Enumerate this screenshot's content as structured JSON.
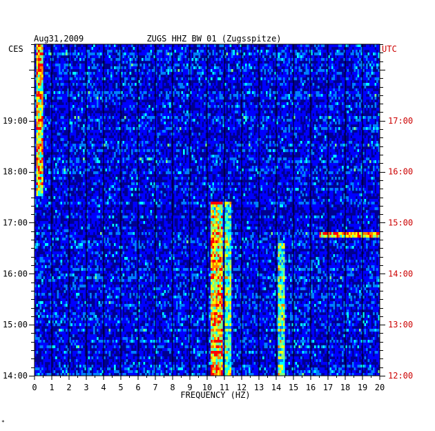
{
  "chart_data": {
    "type": "heatmap",
    "title": "ZUGS HHZ BW 01 (Zugsspitze)",
    "date": "Aug31,2009",
    "left_timezone": "CES",
    "right_timezone": "UTC",
    "xlabel": "FREQUENCY (HZ)",
    "xlim": [
      0,
      20
    ],
    "x_ticks": [
      "0",
      "1",
      "2",
      "3",
      "4",
      "5",
      "6",
      "7",
      "8",
      "9",
      "10",
      "11",
      "12",
      "13",
      "14",
      "15",
      "16",
      "17",
      "18",
      "19",
      "20"
    ],
    "left_time_range_hours": [
      14.0,
      20.5
    ],
    "left_time_ticks": [
      {
        "label": "19:00",
        "hour": 19
      },
      {
        "label": "18:00",
        "hour": 18
      },
      {
        "label": "17:00",
        "hour": 17
      },
      {
        "label": "16:00",
        "hour": 16
      },
      {
        "label": "15:00",
        "hour": 15
      },
      {
        "label": "14:00",
        "hour": 14
      }
    ],
    "right_time_ticks": [
      {
        "label": "17:00",
        "hour": 19
      },
      {
        "label": "16:00",
        "hour": 18
      },
      {
        "label": "15:00",
        "hour": 17
      },
      {
        "label": "14:00",
        "hour": 16
      },
      {
        "label": "13:00",
        "hour": 15
      },
      {
        "label": "12:00",
        "hour": 14
      }
    ],
    "features": [
      {
        "name": "low-frequency microseism band",
        "freq_range_hz": [
          0.1,
          0.5
        ],
        "time_range_hours": [
          17.5,
          20.5
        ],
        "intensity": "high"
      },
      {
        "name": "persistent 10.5 Hz line",
        "freq_range_hz": [
          10.2,
          10.9
        ],
        "time_range_hours": [
          14.0,
          17.4
        ],
        "intensity": "high"
      },
      {
        "name": "11.2 Hz line",
        "freq_range_hz": [
          11.0,
          11.4
        ],
        "time_range_hours": [
          14.0,
          17.4
        ],
        "intensity": "medium"
      },
      {
        "name": "14.3 Hz line",
        "freq_range_hz": [
          14.1,
          14.5
        ],
        "time_range_hours": [
          14.0,
          16.6
        ],
        "intensity": "medium"
      },
      {
        "name": "18 Hz burst",
        "freq_range_hz": [
          16.5,
          20.0
        ],
        "time_range_hours": [
          16.7,
          16.8
        ],
        "intensity": "high"
      }
    ],
    "colormap": [
      "#00008f",
      "#0000ff",
      "#0080ff",
      "#00ffff",
      "#80ff80",
      "#ffff00",
      "#ff8000",
      "#ff0000"
    ],
    "grid": true
  },
  "colors": {
    "left_axis_text": "#000000",
    "right_axis_text": "#cc0000",
    "grid_line": "#000000"
  }
}
